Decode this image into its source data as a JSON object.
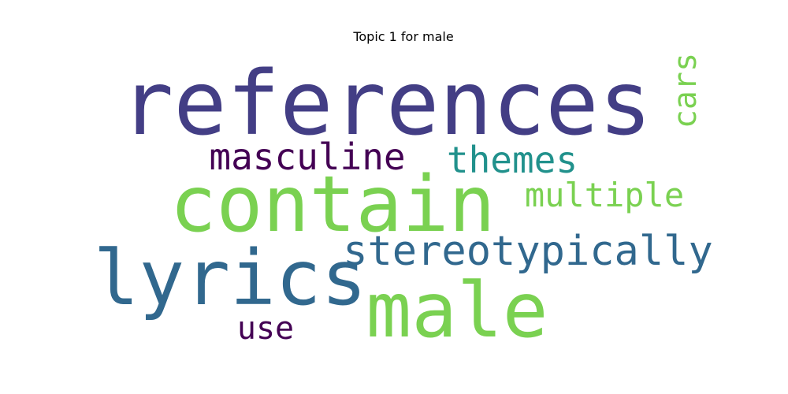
{
  "chart_data": {
    "type": "wordcloud",
    "title": "Topic 1 for male",
    "words": [
      {
        "text": "references",
        "weight": 1.0,
        "color": "#433e85"
      },
      {
        "text": "contain",
        "weight": 0.9,
        "color": "#7ad151"
      },
      {
        "text": "male",
        "weight": 0.9,
        "color": "#7ad151"
      },
      {
        "text": "lyrics",
        "weight": 0.85,
        "color": "#31688e"
      },
      {
        "text": "stereotypically",
        "weight": 0.5,
        "color": "#31688e"
      },
      {
        "text": "masculine",
        "weight": 0.45,
        "color": "#440154"
      },
      {
        "text": "themes",
        "weight": 0.45,
        "color": "#21918c"
      },
      {
        "text": "multiple",
        "weight": 0.42,
        "color": "#7ad151"
      },
      {
        "text": "cars",
        "weight": 0.4,
        "color": "#7ad151",
        "orientation": "vertical"
      },
      {
        "text": "use",
        "weight": 0.38,
        "color": "#440154"
      }
    ]
  }
}
